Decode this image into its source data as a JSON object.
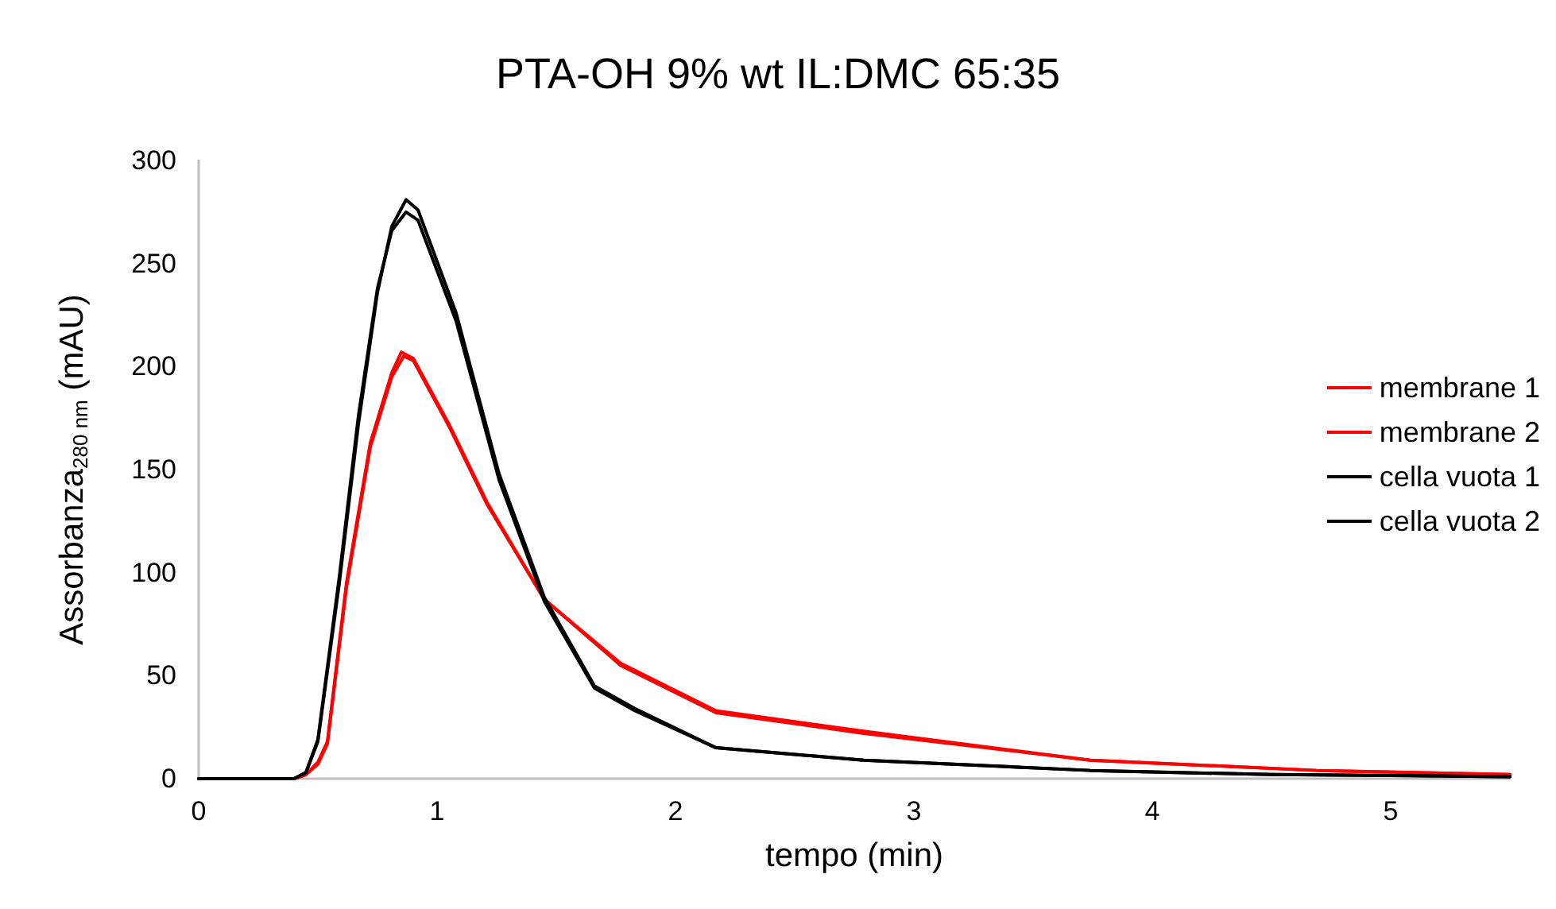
{
  "chart_data": {
    "type": "line",
    "title": "PTA-OH 9% wt IL:DMC 65:35",
    "xlabel": "tempo (min)",
    "ylabel": "Assorbanza$_{280 nm}$ (mAU)",
    "xlim": [
      0,
      5.5
    ],
    "xticks": [
      0,
      1,
      2,
      3,
      4,
      5
    ],
    "ylim": [
      0,
      300
    ],
    "yticks": [
      0,
      50,
      100,
      150,
      200,
      250,
      300
    ],
    "grid": false,
    "legend": "right",
    "marker": "none",
    "line_style": "solid",
    "series": [
      {
        "name": "membrane 1",
        "color": "#ff0000",
        "x": [
          0,
          0.2,
          0.4,
          0.45,
          0.5,
          0.54,
          0.62,
          0.72,
          0.81,
          0.85,
          0.9,
          1.05,
          1.21,
          1.45,
          1.77,
          2.17,
          2.79,
          3.74,
          4.69,
          5.5
        ],
        "values": [
          0,
          0,
          0,
          2,
          8,
          18,
          95,
          163,
          197,
          207,
          204,
          172,
          134,
          87,
          56,
          33,
          23,
          9,
          4,
          2
        ]
      },
      {
        "name": "membrane 2",
        "color": "#ff0000",
        "x": [
          0,
          0.2,
          0.4,
          0.45,
          0.5,
          0.54,
          0.62,
          0.72,
          0.81,
          0.86,
          0.9,
          1.05,
          1.21,
          1.45,
          1.77,
          2.17,
          2.79,
          3.74,
          4.69,
          5.5
        ],
        "values": [
          0,
          0,
          0,
          2,
          7,
          17,
          93,
          161,
          195,
          205,
          203,
          171,
          133,
          87,
          55,
          32,
          22,
          9,
          4,
          2
        ]
      },
      {
        "name": "cella vuota 1",
        "color": "#000000",
        "x": [
          0,
          0.2,
          0.4,
          0.45,
          0.5,
          0.59,
          0.67,
          0.75,
          0.81,
          0.87,
          0.92,
          1.08,
          1.26,
          1.45,
          1.66,
          1.83,
          2.17,
          2.79,
          3.74,
          4.5,
          5.5
        ],
        "values": [
          0,
          0,
          0,
          3,
          18,
          95,
          172,
          236,
          268,
          281,
          276,
          226,
          148,
          88,
          45,
          34,
          15,
          9,
          4,
          2,
          1
        ]
      },
      {
        "name": "cella vuota 2",
        "color": "#000000",
        "x": [
          0,
          0.2,
          0.4,
          0.45,
          0.5,
          0.59,
          0.67,
          0.75,
          0.81,
          0.87,
          0.92,
          1.08,
          1.26,
          1.45,
          1.66,
          1.83,
          2.17,
          2.79,
          3.74,
          4.5,
          5.5
        ],
        "values": [
          0,
          0,
          0,
          3,
          19,
          98,
          176,
          238,
          266,
          275,
          271,
          222,
          145,
          86,
          44,
          33,
          15,
          9,
          4,
          2,
          1
        ]
      }
    ]
  }
}
